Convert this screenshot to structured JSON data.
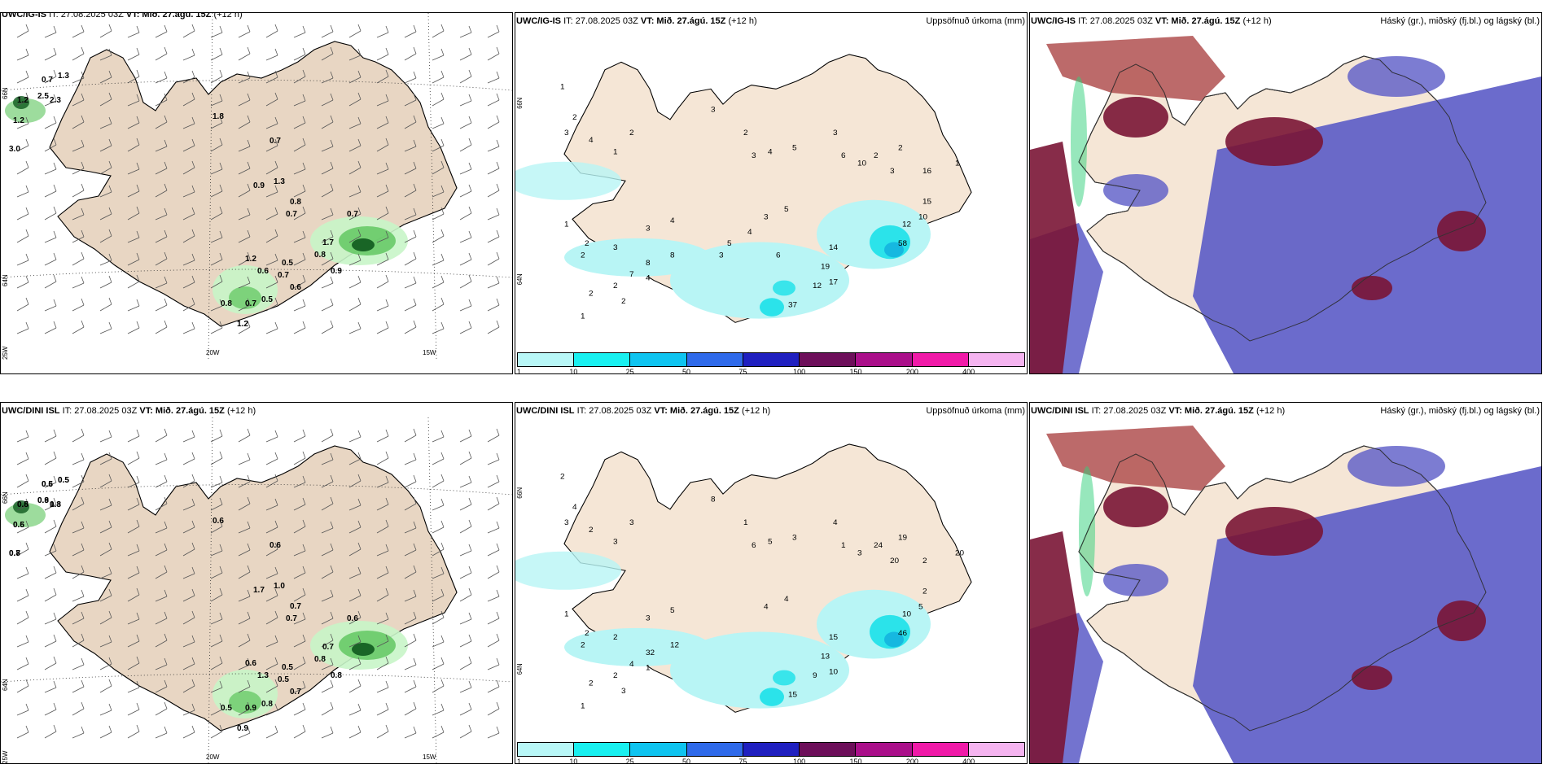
{
  "panels": [
    {
      "model": "UWC/IG-IS",
      "it": "IT: 27.08.2025 03Z",
      "vt": "VT: Mið. 27.ágú. 15Z",
      "lead": "(+12 h)",
      "right_title": "",
      "lat_labels": [
        "66N",
        "64N",
        "25W"
      ],
      "lon_labels": [
        "20W",
        "15W"
      ],
      "values": [
        "0.7",
        "1.3",
        "1.2",
        "2.5",
        "1.2",
        "3.0",
        "2.3",
        "1.8",
        "0.7",
        "0.9",
        "1.3",
        "0.8",
        "0.7",
        "1.7",
        "0.9",
        "0.7",
        "0.8",
        "1.2",
        "0.6",
        "0.7",
        "0.6",
        "0.7",
        "0.8",
        "0.5",
        "0.5",
        "1.2"
      ]
    },
    {
      "model": "UWC/IG-IS",
      "it": "IT: 27.08.2025 03Z",
      "vt": "VT: Mið. 27.ágú. 15Z",
      "lead": "(+12 h)",
      "right_title": "Uppsöfnuð úrkoma (mm)",
      "lat_labels": [
        "66N",
        "64N"
      ],
      "values": [
        "1",
        "2",
        "3",
        "4",
        "2",
        "1",
        "1",
        "2",
        "3",
        "2",
        "3",
        "4",
        "3",
        "2",
        "3",
        "4",
        "5",
        "3",
        "6",
        "10",
        "16",
        "15",
        "12",
        "10",
        "14",
        "19",
        "12",
        "17",
        "37",
        "58",
        "2",
        "3",
        "2",
        "1",
        "8",
        "8",
        "7",
        "4",
        "2",
        "2",
        "1",
        "2",
        "5",
        "3",
        "4",
        "5",
        "3",
        "6"
      ],
      "colorbar": {
        "labels": [
          "1",
          "10",
          "25",
          "50",
          "75",
          "100",
          "150",
          "200",
          "400"
        ]
      }
    },
    {
      "model": "UWC/IG-IS",
      "it": "IT: 27.08.2025 03Z",
      "vt": "VT: Mið. 27.ágú. 15Z",
      "lead": "(+12 h)",
      "right_title": "Háský (gr.), miðský (fj.bl.) og lágský (bl.)"
    },
    {
      "model": "UWC/DINI ISL",
      "it": "IT: 27.08.2025 03Z",
      "vt": "VT: Mið. 27.ágú. 15Z",
      "lead": "(+12 h)",
      "right_title": "",
      "lat_labels": [
        "66N",
        "64N",
        "25W"
      ],
      "lon_labels": [
        "20W",
        "15W"
      ],
      "values": [
        "0.6",
        "0.5",
        "0.8",
        "0.8",
        "0.6",
        "0.7",
        "1.3",
        "0.6",
        "0.6",
        "1.7",
        "1.0",
        "0.7",
        "0.6",
        "0.7",
        "0.8",
        "0.7",
        "0.8",
        "0.6",
        "1.3",
        "0.5",
        "0.7",
        "0.9",
        "0.5",
        "0.8",
        "0.5",
        "0.9",
        "0.5",
        "0.5",
        "0.5",
        "0.9",
        "0.5",
        "0.8",
        "0.8"
      ]
    },
    {
      "model": "UWC/DINI ISL",
      "it": "IT: 27.08.2025 03Z",
      "vt": "VT: Mið. 27.ágú. 15Z",
      "lead": "(+12 h)",
      "right_title": "Uppsöfnuð úrkoma (mm)",
      "lat_labels": [
        "66N",
        "64N"
      ],
      "values": [
        "2",
        "4",
        "3",
        "2",
        "3",
        "3",
        "1",
        "2",
        "2",
        "2",
        "3",
        "5",
        "8",
        "1",
        "6",
        "5",
        "3",
        "4",
        "1",
        "3",
        "2",
        "2",
        "10",
        "5",
        "15",
        "13",
        "9",
        "10",
        "15",
        "46",
        "24",
        "20",
        "19",
        "20",
        "12",
        "32",
        "4",
        "1",
        "2",
        "2",
        "1",
        "3",
        "4",
        "4"
      ],
      "colorbar": {
        "labels": [
          "1",
          "10",
          "25",
          "50",
          "75",
          "100",
          "150",
          "200",
          "400"
        ]
      }
    },
    {
      "model": "UWC/DINI ISL",
      "it": "IT: 27.08.2025 03Z",
      "vt": "VT: Mið. 27.ágú. 15Z",
      "lead": "(+12 h)",
      "right_title": "Háský (gr.), miðský (fj.bl.) og lágský (bl.)"
    }
  ],
  "colors": {
    "land": "#f5e6d6",
    "land_tan": "#e8d6c3",
    "precip_light": "#b8f5f5",
    "precip_cyan": "#2be3ea",
    "precip_mid": "#16b8e0",
    "cloud_low": "#5b5bc7",
    "cloud_mid": "#7a1535",
    "cloud_high": "#2fd07a",
    "green_light": "#c8f5c8",
    "green_mid": "#5bc45b",
    "green_dark": "#0f5a1e",
    "colorbar": [
      "#b8f7f7",
      "#19f0f0",
      "#0fc4f0",
      "#2f6aea",
      "#2020c0",
      "#6d0f5a",
      "#aa0f8a",
      "#f01aa8",
      "#f5b4f0"
    ]
  }
}
